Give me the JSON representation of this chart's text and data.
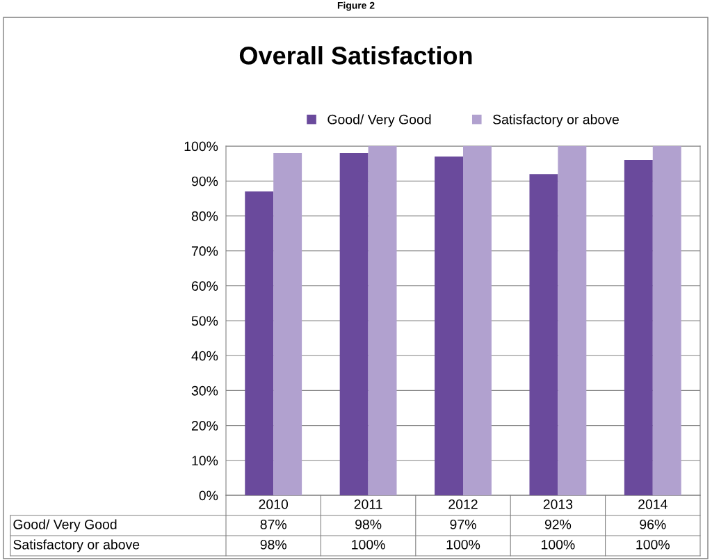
{
  "chart_data": {
    "type": "bar",
    "title": "Overall Satisfaction",
    "annotations": [
      "Figure 2"
    ],
    "categories": [
      "2010",
      "2011",
      "2012",
      "2013",
      "2014"
    ],
    "series": [
      {
        "name": "Good/ Very Good",
        "color": "#6a4a9c",
        "values": [
          87,
          98,
          97,
          92,
          96
        ],
        "value_labels": [
          "87%",
          "98%",
          "97%",
          "92%",
          "96%"
        ]
      },
      {
        "name": "Satisfactory or above",
        "color": "#b1a1cf",
        "values": [
          98,
          100,
          100,
          100,
          100
        ],
        "value_labels": [
          "98%",
          "100%",
          "100%",
          "100%",
          "100%"
        ]
      }
    ],
    "ylim": [
      0,
      100
    ],
    "yticks": [
      {
        "value": 0,
        "label": "0%"
      },
      {
        "value": 10,
        "label": "10%"
      },
      {
        "value": 20,
        "label": "20%"
      },
      {
        "value": 30,
        "label": "30%"
      },
      {
        "value": 40,
        "label": "40%"
      },
      {
        "value": 50,
        "label": "50%"
      },
      {
        "value": 60,
        "label": "60%"
      },
      {
        "value": 70,
        "label": "70%"
      },
      {
        "value": 80,
        "label": "80%"
      },
      {
        "value": 90,
        "label": "90%"
      },
      {
        "value": 100,
        "label": "100%"
      }
    ],
    "grid": "y",
    "legend": "top"
  }
}
